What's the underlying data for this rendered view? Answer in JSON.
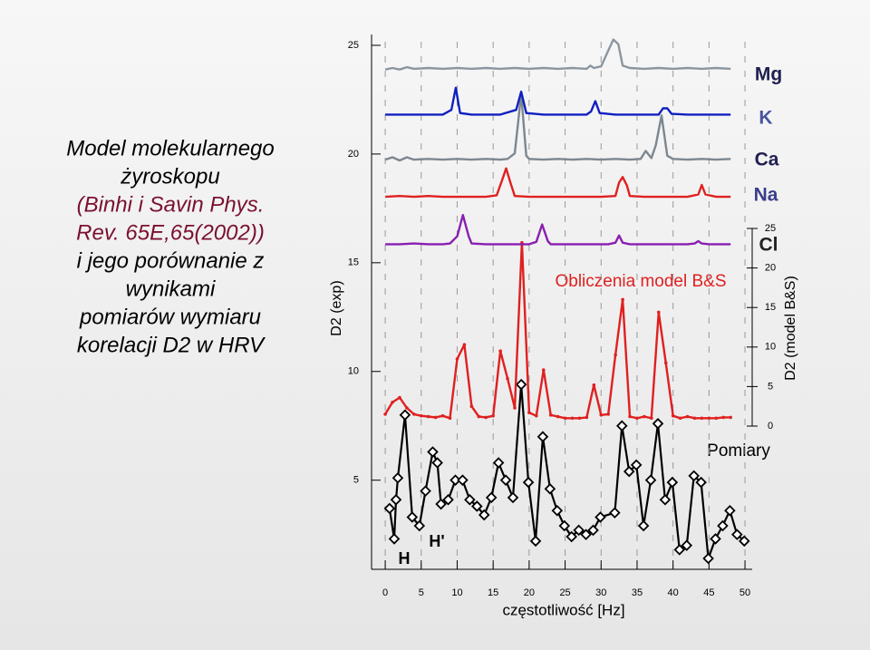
{
  "chart_data": {
    "type": "line",
    "description": [
      "Model molekularnego",
      "żyroskopu"
    ],
    "citation": [
      "(Binhi i Savin Phys.",
      "Rev. 65E,65(2002))"
    ],
    "description2": [
      "i jego porównanie z",
      "wynikami",
      "pomiarów wymiaru",
      "korelacji D2 w HRV"
    ],
    "xlabel": "częstotliwość [Hz]",
    "ylabel": "D2 (exp)",
    "y2label": "D2 (model B&S)",
    "xlim": [
      -1.9,
      51
    ],
    "xticks": [
      0,
      5,
      10,
      15,
      20,
      25,
      30,
      35,
      40,
      45,
      50
    ],
    "ylim": [
      0.9,
      25.5
    ],
    "yticks": [
      5,
      10,
      15,
      20,
      25
    ],
    "y2lim": [
      0,
      25
    ],
    "y2ticks": [
      0,
      5,
      10,
      15,
      20,
      25
    ],
    "grid": true,
    "annotations": [
      "H",
      "H'"
    ],
    "series": [
      {
        "name": "Pomiary",
        "color": "#000000",
        "axis": "y",
        "marker": "diamond",
        "x": [
          0.6,
          1.25,
          1.5,
          1.75,
          2.75,
          3.75,
          4.75,
          5.6,
          6.6,
          7.25,
          7.75,
          8.75,
          9.75,
          10.75,
          11.75,
          12.75,
          13.75,
          14.75,
          15.75,
          16.75,
          17.75,
          18.9,
          19.9,
          20.9,
          21.9,
          22.9,
          23.9,
          24.9,
          25.9,
          26.9,
          27.9,
          28.9,
          29.9,
          31.9,
          32.9,
          33.9,
          34.9,
          35.9,
          36.9,
          37.9,
          38.9,
          39.9,
          40.9,
          41.9,
          42.9,
          43.9,
          44.9,
          45.9,
          46.9,
          47.9,
          48.9,
          49.9
        ],
        "values": [
          3.7,
          2.3,
          4.1,
          5.1,
          8.0,
          3.3,
          2.9,
          4.5,
          6.3,
          5.8,
          3.9,
          4.1,
          5.0,
          5.0,
          4.1,
          3.8,
          3.4,
          4.2,
          5.8,
          5.0,
          4.2,
          9.4,
          4.9,
          2.2,
          7.0,
          4.6,
          3.6,
          2.9,
          2.4,
          2.7,
          2.5,
          2.7,
          3.3,
          3.5,
          7.5,
          5.4,
          5.7,
          2.9,
          5.0,
          7.6,
          4.1,
          4.9,
          1.8,
          2.0,
          5.2,
          4.9,
          1.4,
          2.3,
          2.9,
          3.6,
          2.5,
          2.2
        ]
      },
      {
        "name": "Obliczenia model B&S",
        "color": "#e02020",
        "axis": "y2",
        "marker": "dot",
        "x": [
          0,
          1,
          2,
          3,
          4,
          5,
          6,
          7,
          8,
          9,
          10,
          11,
          12,
          13,
          14,
          15,
          16,
          17,
          18,
          19,
          20,
          21,
          22,
          23,
          24,
          25,
          26,
          27,
          28,
          29,
          30,
          31,
          32,
          33,
          34,
          35,
          36,
          37,
          38,
          39,
          40,
          41,
          42,
          43,
          44,
          45,
          46,
          47,
          48
        ],
        "values": [
          1.5,
          3,
          3.6,
          2.3,
          1.5,
          1.3,
          1.2,
          1.1,
          1.3,
          1.0,
          8.5,
          10.3,
          2.5,
          1.2,
          1.1,
          1.3,
          9.5,
          6,
          2.3,
          23.2,
          1.7,
          1.3,
          7.1,
          1.4,
          1.2,
          1.0,
          1.0,
          1.0,
          1.1,
          5.2,
          1.4,
          1.5,
          9,
          16,
          1.2,
          1.0,
          1.2,
          1.0,
          14.4,
          8,
          1.3,
          1.0,
          1.2,
          1.0,
          1.0,
          1.0,
          1.0,
          1.1,
          1.1
        ]
      },
      {
        "name": "Cl",
        "color": "#8a1fb0",
        "axis": "y2",
        "x": [
          0,
          2,
          4,
          6,
          8,
          9,
          10,
          10.8,
          11.6,
          12,
          14,
          16,
          18,
          20,
          21,
          21.8,
          22.6,
          23,
          25,
          27,
          29,
          31,
          32,
          32.5,
          33,
          34,
          36,
          38,
          40,
          42,
          43,
          43.5,
          44,
          45,
          46,
          48
        ],
        "values": [
          23,
          23,
          23.1,
          23,
          23,
          23.1,
          24,
          26.7,
          24,
          23.1,
          23,
          23,
          23,
          23,
          23.3,
          25.5,
          23.4,
          23,
          23,
          23,
          23,
          23,
          23.2,
          24.1,
          23.2,
          23,
          23,
          23,
          23,
          23,
          23.1,
          23.4,
          23.1,
          23,
          23,
          23
        ]
      },
      {
        "name": "Na",
        "color": "#e02020",
        "axis": "y2",
        "x": [
          0,
          2,
          4,
          6,
          8,
          10,
          12,
          14,
          15.5,
          16.2,
          16.8,
          17.4,
          18,
          20,
          22,
          24,
          26,
          28,
          30,
          32,
          32.5,
          33,
          33.6,
          34,
          36,
          38,
          40,
          42,
          43.5,
          44,
          44.5,
          46,
          48
        ],
        "values": [
          29,
          29.1,
          29,
          29.1,
          29,
          29,
          29,
          29,
          29.2,
          31,
          32.6,
          30.8,
          29.1,
          29,
          29,
          29,
          29,
          29,
          29,
          29.1,
          30.8,
          31.5,
          30.4,
          29.1,
          29,
          29,
          29,
          29,
          29.3,
          30.5,
          29.3,
          29,
          29
        ]
      },
      {
        "name": "Ca",
        "color": "#7d8790",
        "axis": "y2",
        "x": [
          0,
          1,
          2,
          3,
          4,
          6,
          8,
          10,
          12,
          14,
          16,
          17,
          18,
          18.9,
          19.6,
          20,
          22,
          24,
          26,
          28,
          30,
          32,
          34,
          35.5,
          36.2,
          37,
          37.6,
          38.4,
          39.2,
          40,
          42,
          44,
          46,
          48
        ],
        "values": [
          33.7,
          34,
          33.6,
          34,
          33.7,
          33.8,
          33.7,
          33.8,
          33.7,
          33.8,
          33.7,
          33.8,
          34.5,
          42,
          34.2,
          33.8,
          33.7,
          33.8,
          33.7,
          33.8,
          33.7,
          33.8,
          33.7,
          33.8,
          34.8,
          33.9,
          35.5,
          39.3,
          34.2,
          33.8,
          33.7,
          33.8,
          33.7,
          33.8
        ]
      },
      {
        "name": "K",
        "color": "#1020c0",
        "axis": "y2",
        "x": [
          0,
          2,
          4,
          6,
          8,
          9.2,
          9.8,
          10.4,
          12,
          14,
          16,
          18.2,
          18.9,
          19.6,
          22,
          24,
          26,
          28,
          28.6,
          29.2,
          29.8,
          32,
          34,
          36,
          38,
          38.6,
          39.2,
          39.8,
          42,
          44,
          46,
          48
        ],
        "values": [
          39.4,
          39.4,
          39.4,
          39.4,
          39.4,
          40,
          42.8,
          39.6,
          39.4,
          39.4,
          39.4,
          40,
          42.3,
          39.6,
          39.4,
          39.4,
          39.4,
          39.4,
          39.8,
          41.1,
          39.6,
          39.4,
          39.4,
          39.4,
          39.4,
          40.2,
          40.2,
          39.5,
          39.4,
          39.4,
          39.4,
          39.4
        ]
      },
      {
        "name": "Mg",
        "color": "#8c96a0",
        "axis": "y2",
        "x": [
          0,
          1,
          2,
          3,
          4,
          6,
          8,
          10,
          12,
          14,
          16,
          18,
          20,
          22,
          24,
          26,
          28,
          28.5,
          29,
          30,
          31,
          31.7,
          32.4,
          33,
          34,
          36,
          38,
          40,
          42,
          44,
          46,
          48
        ],
        "values": [
          45.1,
          45.3,
          45.1,
          45.4,
          45.2,
          45.3,
          45.2,
          45.3,
          45.2,
          45.3,
          45.2,
          45.3,
          45.2,
          45.3,
          45.2,
          45.3,
          45.2,
          45.6,
          45.3,
          45.5,
          47.5,
          48.9,
          48.3,
          45.6,
          45.3,
          45.2,
          45.3,
          45.2,
          45.3,
          45.2,
          45.3,
          45.2
        ]
      }
    ]
  }
}
